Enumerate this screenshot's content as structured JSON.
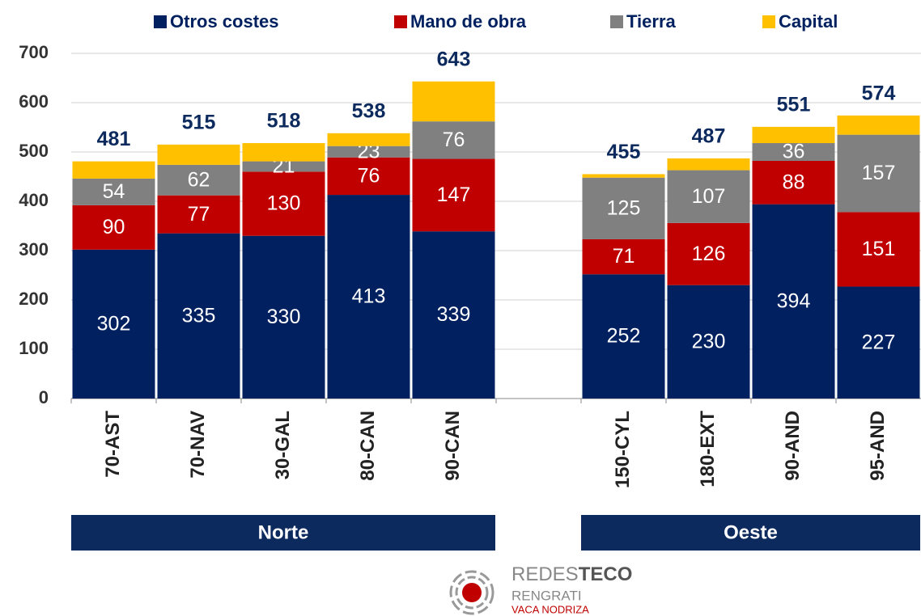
{
  "chart_data": {
    "type": "stacked_bar",
    "categories": [
      "70-AST",
      "70-NAV",
      "30-GAL",
      "80-CAN",
      "90-CAN",
      null,
      "150-CYL",
      "180-EXT",
      "90-AND",
      "95-AND"
    ],
    "series": [
      {
        "name": "Otros costes",
        "color": "#002060",
        "values": [
          302,
          335,
          330,
          413,
          339,
          null,
          252,
          230,
          394,
          227
        ]
      },
      {
        "name": "Mano de obra",
        "color": "#c00000",
        "values": [
          90,
          77,
          130,
          76,
          147,
          null,
          71,
          126,
          88,
          151
        ]
      },
      {
        "name": "Tierra",
        "color": "#808080",
        "values": [
          54,
          62,
          21,
          23,
          76,
          null,
          125,
          107,
          36,
          157
        ]
      },
      {
        "name": "Capital",
        "color": "#ffc000",
        "values": [
          35,
          41,
          37,
          26,
          81,
          null,
          7,
          24,
          33,
          39
        ]
      }
    ],
    "labeled_series": [
      "Otros costes",
      "Mano de obra",
      "Tierra"
    ],
    "totals": [
      481,
      515,
      518,
      538,
      643,
      null,
      455,
      487,
      551,
      574
    ],
    "groups": [
      "Norte",
      "Oeste"
    ],
    "ylim": [
      0,
      700
    ],
    "yticks": [
      0,
      100,
      200,
      300,
      400,
      500,
      600,
      700
    ],
    "grid": true,
    "legend": "top"
  },
  "logo": [
    "REDES",
    "TECO",
    "RENGRATI",
    "VACA NODRIZA"
  ]
}
